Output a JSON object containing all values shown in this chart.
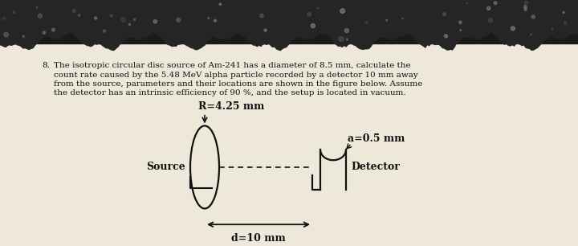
{
  "bg_paper_color": "#ede8da",
  "dark_band_color": "#1a1a1a",
  "question_number": "8.",
  "question_text_lines": [
    "The isotropic circular disc source of Am-241 has a diameter of 8.5 mm, calculate the",
    "count rate caused by the 5.48 MeV alpha particle recorded by a detector 10 mm away",
    "from the source, parameters and their locations are shown in the figure below. Assume",
    "the detector has an intrinsic efficiency of 90 %, and the setup is located in vacuum."
  ],
  "label_R": "R=4.25 mm",
  "label_a": "a=0.5 mm",
  "label_source": "Source",
  "label_detector": "Detector",
  "label_d": "d=10 mm",
  "text_color": "#111111",
  "diagram_line_color": "#111111"
}
